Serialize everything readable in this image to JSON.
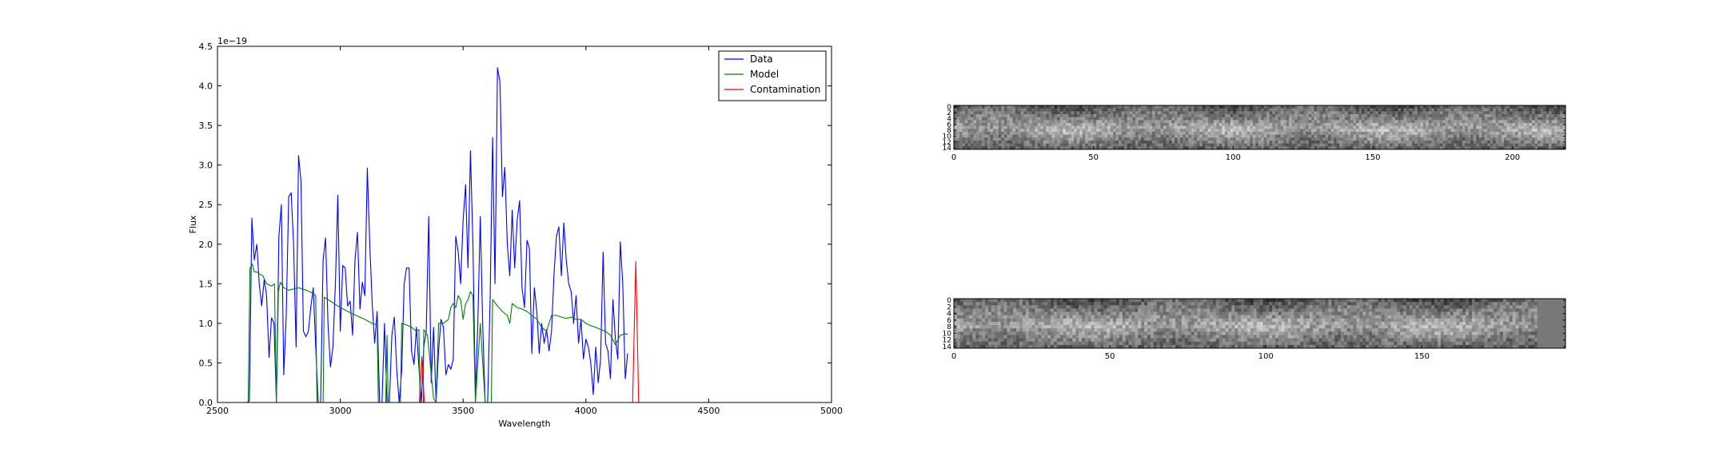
{
  "chart_data": [
    {
      "type": "line",
      "xlabel": "Wavelength",
      "ylabel": "Flux",
      "offset_text": "1e−19",
      "xlim": [
        2500,
        5000
      ],
      "ylim": [
        0.0,
        4.5
      ],
      "x_ticks": [
        2500,
        3000,
        3500,
        4000,
        4500,
        5000
      ],
      "y_ticks": [
        0.0,
        0.5,
        1.0,
        1.5,
        2.0,
        2.5,
        3.0,
        3.5,
        4.0,
        4.5
      ],
      "x_tick_labels": [
        "2500",
        "3000",
        "3500",
        "4000",
        "4500",
        "5000"
      ],
      "y_tick_labels": [
        "0.0",
        "0.5",
        "1.0",
        "1.5",
        "2.0",
        "2.5",
        "3.0",
        "3.5",
        "4.0",
        "4.5"
      ],
      "legend_position": "top-right",
      "series": [
        {
          "name": "Data",
          "color": "#0000ff",
          "points": [
            [
              2600,
              0
            ],
            [
              2620,
              0
            ],
            [
              2630,
              0.02
            ],
            [
              2640,
              2.33
            ],
            [
              2650,
              1.8
            ],
            [
              2660,
              2.0
            ],
            [
              2670,
              1.5
            ],
            [
              2680,
              1.22
            ],
            [
              2690,
              1.55
            ],
            [
              2700,
              1.35
            ],
            [
              2710,
              0.57
            ],
            [
              2720,
              1.07
            ],
            [
              2730,
              1.0
            ],
            [
              2740,
              0
            ],
            [
              2750,
              2.1
            ],
            [
              2760,
              2.5
            ],
            [
              2770,
              0.35
            ],
            [
              2780,
              1.1
            ],
            [
              2790,
              2.6
            ],
            [
              2800,
              2.65
            ],
            [
              2810,
              2.0
            ],
            [
              2820,
              0.7
            ],
            [
              2830,
              3.12
            ],
            [
              2840,
              2.8
            ],
            [
              2850,
              0.9
            ],
            [
              2860,
              0.83
            ],
            [
              2870,
              0.9
            ],
            [
              2880,
              1.2
            ],
            [
              2890,
              1.45
            ],
            [
              2900,
              0.7
            ],
            [
              2910,
              0
            ],
            [
              2920,
              0
            ],
            [
              2930,
              1.8
            ],
            [
              2940,
              2.08
            ],
            [
              2950,
              1.0
            ],
            [
              2960,
              0.45
            ],
            [
              2970,
              0.7
            ],
            [
              2980,
              1.5
            ],
            [
              2990,
              2.62
            ],
            [
              3000,
              0.9
            ],
            [
              3010,
              1.73
            ],
            [
              3020,
              1.7
            ],
            [
              3030,
              1.22
            ],
            [
              3040,
              1.28
            ],
            [
              3050,
              0.85
            ],
            [
              3060,
              1.8
            ],
            [
              3070,
              2.15
            ],
            [
              3080,
              1.18
            ],
            [
              3090,
              1.52
            ],
            [
              3100,
              1.35
            ],
            [
              3110,
              2.96
            ],
            [
              3120,
              2.0
            ],
            [
              3130,
              1.25
            ],
            [
              3140,
              0.75
            ],
            [
              3150,
              1.15
            ],
            [
              3160,
              0
            ],
            [
              3170,
              0
            ],
            [
              3180,
              1.0
            ],
            [
              3190,
              0
            ],
            [
              3200,
              0
            ],
            [
              3210,
              0.85
            ],
            [
              3220,
              1.08
            ],
            [
              3230,
              0.4
            ],
            [
              3240,
              0.0
            ],
            [
              3250,
              0.4
            ],
            [
              3260,
              1.5
            ],
            [
              3270,
              1.7
            ],
            [
              3280,
              1.7
            ],
            [
              3290,
              0.65
            ],
            [
              3300,
              0.48
            ],
            [
              3310,
              0.95
            ],
            [
              3320,
              0.45
            ],
            [
              3330,
              0
            ],
            [
              3340,
              0.7
            ],
            [
              3350,
              0.9
            ],
            [
              3360,
              2.35
            ],
            [
              3370,
              0.25
            ],
            [
              3380,
              0.95
            ],
            [
              3390,
              0
            ],
            [
              3400,
              0.65
            ],
            [
              3410,
              1.05
            ],
            [
              3420,
              0.95
            ],
            [
              3430,
              0.35
            ],
            [
              3440,
              0.48
            ],
            [
              3450,
              0.42
            ],
            [
              3460,
              0.55
            ],
            [
              3470,
              2.1
            ],
            [
              3480,
              1.9
            ],
            [
              3490,
              1.5
            ],
            [
              3500,
              2.3
            ],
            [
              3510,
              2.75
            ],
            [
              3520,
              1.7
            ],
            [
              3530,
              3.18
            ],
            [
              3540,
              2.0
            ],
            [
              3550,
              0.1
            ],
            [
              3560,
              1.0
            ],
            [
              3570,
              2.35
            ],
            [
              3580,
              0.95
            ],
            [
              3590,
              0
            ],
            [
              3600,
              0
            ],
            [
              3610,
              1.3
            ],
            [
              3620,
              3.35
            ],
            [
              3630,
              1.5
            ],
            [
              3640,
              4.23
            ],
            [
              3650,
              4.05
            ],
            [
              3660,
              2.6
            ],
            [
              3670,
              2.97
            ],
            [
              3680,
              2.0
            ],
            [
              3690,
              1.6
            ],
            [
              3700,
              2.43
            ],
            [
              3710,
              1.7
            ],
            [
              3720,
              2.3
            ],
            [
              3730,
              2.55
            ],
            [
              3740,
              1.45
            ],
            [
              3750,
              1.2
            ],
            [
              3760,
              2.05
            ],
            [
              3770,
              1.95
            ],
            [
              3780,
              0.62
            ],
            [
              3790,
              1.45
            ],
            [
              3800,
              1.15
            ],
            [
              3810,
              0.62
            ],
            [
              3820,
              1.0
            ],
            [
              3830,
              0.75
            ],
            [
              3840,
              0.92
            ],
            [
              3850,
              0.65
            ],
            [
              3860,
              0.9
            ],
            [
              3870,
              1.62
            ],
            [
              3880,
              2.1
            ],
            [
              3890,
              2.22
            ],
            [
              3900,
              1.6
            ],
            [
              3910,
              2.27
            ],
            [
              3920,
              1.8
            ],
            [
              3930,
              1.5
            ],
            [
              3940,
              1.4
            ],
            [
              3950,
              1.0
            ],
            [
              3960,
              1.35
            ],
            [
              3970,
              0.75
            ],
            [
              3980,
              1.05
            ],
            [
              3990,
              0.55
            ],
            [
              4000,
              0.8
            ],
            [
              4010,
              0.7
            ],
            [
              4020,
              0.5
            ],
            [
              4030,
              0.1
            ],
            [
              4040,
              0.7
            ],
            [
              4050,
              0.25
            ],
            [
              4060,
              0.55
            ],
            [
              4070,
              1.9
            ],
            [
              4080,
              0.75
            ],
            [
              4090,
              0.65
            ],
            [
              4100,
              0.3
            ],
            [
              4110,
              1.3
            ],
            [
              4120,
              0.8
            ],
            [
              4130,
              0.55
            ],
            [
              4140,
              2.03
            ],
            [
              4150,
              1.5
            ],
            [
              4160,
              0.3
            ],
            [
              4170,
              0.62
            ]
          ]
        },
        {
          "name": "Model",
          "color": "#008000",
          "points": [
            [
              2600,
              0
            ],
            [
              2625,
              0
            ],
            [
              2632,
              1.7
            ],
            [
              2642,
              1.75
            ],
            [
              2650,
              1.65
            ],
            [
              2660,
              1.65
            ],
            [
              2672,
              1.62
            ],
            [
              2685,
              1.6
            ],
            [
              2700,
              1.5
            ],
            [
              2720,
              1.47
            ],
            [
              2732,
              1.5
            ],
            [
              2740,
              0
            ],
            [
              2748,
              1.4
            ],
            [
              2756,
              1.52
            ],
            [
              2770,
              1.45
            ],
            [
              2790,
              1.42
            ],
            [
              2830,
              1.45
            ],
            [
              2860,
              1.42
            ],
            [
              2890,
              1.38
            ],
            [
              2900,
              1.35
            ],
            [
              2905,
              0
            ],
            [
              2930,
              0
            ],
            [
              2935,
              1.33
            ],
            [
              2960,
              1.28
            ],
            [
              3000,
              1.2
            ],
            [
              3050,
              1.12
            ],
            [
              3100,
              1.05
            ],
            [
              3130,
              1.0
            ],
            [
              3150,
              0.98
            ],
            [
              3155,
              0
            ],
            [
              3185,
              0
            ],
            [
              3190,
              0.85
            ],
            [
              3195,
              0
            ],
            [
              3245,
              0
            ],
            [
              3250,
              1.0
            ],
            [
              3270,
              0.98
            ],
            [
              3290,
              0.95
            ],
            [
              3310,
              0.9
            ],
            [
              3320,
              0.92
            ],
            [
              3325,
              0
            ],
            [
              3338,
              0
            ],
            [
              3340,
              0.92
            ],
            [
              3355,
              0.85
            ],
            [
              3375,
              0.2
            ],
            [
              3380,
              0.05
            ],
            [
              3390,
              0.0
            ],
            [
              3400,
              1.0
            ],
            [
              3420,
              1.0
            ],
            [
              3440,
              1.05
            ],
            [
              3450,
              1.2
            ],
            [
              3460,
              1.25
            ],
            [
              3470,
              1.2
            ],
            [
              3480,
              1.35
            ],
            [
              3490,
              1.3
            ],
            [
              3500,
              1.05
            ],
            [
              3510,
              1.25
            ],
            [
              3520,
              1.3
            ],
            [
              3530,
              1.4
            ],
            [
              3540,
              1.35
            ],
            [
              3550,
              0
            ],
            [
              3570,
              1.0
            ],
            [
              3590,
              0
            ],
            [
              3615,
              0
            ],
            [
              3620,
              1.3
            ],
            [
              3640,
              1.22
            ],
            [
              3660,
              1.15
            ],
            [
              3680,
              1.1
            ],
            [
              3690,
              1.0
            ],
            [
              3700,
              1.25
            ],
            [
              3720,
              1.2
            ],
            [
              3740,
              1.18
            ],
            [
              3760,
              1.15
            ],
            [
              3780,
              1.1
            ],
            [
              3800,
              1.05
            ],
            [
              3820,
              0.95
            ],
            [
              3840,
              0.9
            ],
            [
              3860,
              1.1
            ],
            [
              3880,
              1.1
            ],
            [
              3900,
              1.08
            ],
            [
              3920,
              1.06
            ],
            [
              3940,
              1.08
            ],
            [
              3960,
              1.05
            ],
            [
              3980,
              1.05
            ],
            [
              4000,
              1.0
            ],
            [
              4020,
              0.97
            ],
            [
              4040,
              0.95
            ],
            [
              4060,
              0.92
            ],
            [
              4080,
              0.9
            ],
            [
              4100,
              0.85
            ],
            [
              4120,
              0.73
            ],
            [
              4140,
              0.85
            ],
            [
              4160,
              0.87
            ],
            [
              4170,
              0.86
            ]
          ]
        },
        {
          "name": "Contamination",
          "color": "#ff0000",
          "points": [
            [
              2600,
              0
            ],
            [
              3322,
              0
            ],
            [
              3332,
              0.58
            ],
            [
              3342,
              0
            ],
            [
              3980,
              0
            ],
            [
              4190,
              0
            ],
            [
              4203,
              1.78
            ],
            [
              4215,
              0
            ],
            [
              4935,
              0
            ]
          ]
        }
      ]
    },
    {
      "type": "heatmap",
      "xlim": [
        0,
        219
      ],
      "ylim": [
        15,
        0
      ],
      "x_ticks": [
        0,
        50,
        100,
        150,
        200
      ],
      "x_tick_labels": [
        "0",
        "50",
        "100",
        "150",
        "200"
      ],
      "y_tick_labels": [
        "0",
        "2",
        "4",
        "6",
        "8",
        "10",
        "12",
        "14"
      ],
      "colormap": "gray"
    },
    {
      "type": "heatmap",
      "xlim": [
        0,
        196
      ],
      "ylim": [
        15,
        0
      ],
      "x_ticks": [
        0,
        50,
        100,
        150
      ],
      "x_tick_labels": [
        "0",
        "50",
        "100",
        "150"
      ],
      "y_tick_labels": [
        "0",
        "2",
        "4",
        "6",
        "8",
        "10",
        "12",
        "14"
      ],
      "colormap": "gray"
    }
  ]
}
